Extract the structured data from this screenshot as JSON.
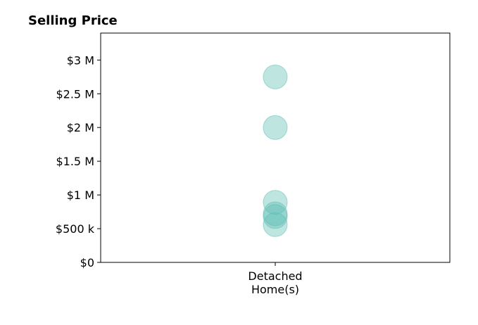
{
  "chart_data": {
    "type": "scatter",
    "title": "Selling Price",
    "xlabel": "",
    "ylabel": "",
    "categories": [
      "Detached Home(s)"
    ],
    "category_label_lines": [
      "Detached",
      "Home(s)"
    ],
    "ylim": [
      0,
      3400000
    ],
    "yticks": [
      0,
      500000,
      1000000,
      1500000,
      2000000,
      2500000,
      3000000
    ],
    "ytick_labels": [
      "$0",
      "$500 k",
      "$1 M",
      "$1.5 M",
      "$2 M",
      "$2.5 M",
      "$3 M"
    ],
    "grid": false,
    "legend": "none",
    "marker_color": "#5fbfb5",
    "series": [
      {
        "points": [
          {
            "category": "Detached Home(s)",
            "value": 2750000
          },
          {
            "category": "Detached Home(s)",
            "value": 2000000
          },
          {
            "category": "Detached Home(s)",
            "value": 890000
          },
          {
            "category": "Detached Home(s)",
            "value": 720000
          },
          {
            "category": "Detached Home(s)",
            "value": 680000
          },
          {
            "category": "Detached Home(s)",
            "value": 560000
          }
        ]
      }
    ]
  }
}
